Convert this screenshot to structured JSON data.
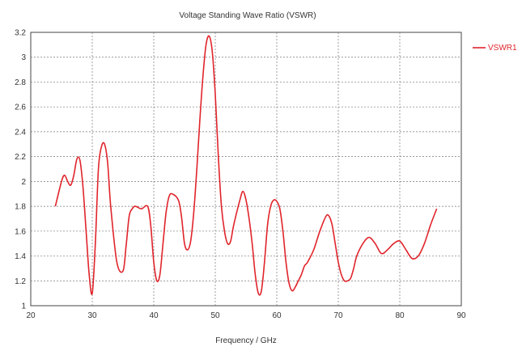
{
  "chart_data": {
    "type": "line",
    "title": "Voltage Standing Wave Ratio (VSWR)",
    "xlabel": "Frequency / GHz",
    "ylabel": "",
    "xlim": [
      20,
      90
    ],
    "ylim": [
      1,
      3.2
    ],
    "xticks": [
      "20",
      "30",
      "40",
      "50",
      "60",
      "70",
      "80",
      "90"
    ],
    "yticks": [
      "1",
      "1.2",
      "1.4",
      "1.6",
      "1.8",
      "2",
      "2.2",
      "2.4",
      "2.6",
      "2.8",
      "3",
      "3.2"
    ],
    "grid": true,
    "legend_position": "right",
    "series": [
      {
        "name": "VSWR1",
        "color": "#e0242b",
        "x": [
          24,
          25,
          25.5,
          26,
          26.5,
          27,
          27.5,
          28,
          28.5,
          29,
          29.5,
          30,
          30.5,
          31,
          31.5,
          32,
          32.5,
          33,
          34,
          35,
          35.5,
          36,
          36.5,
          37,
          38,
          39,
          39.5,
          40,
          40.5,
          41,
          41.5,
          42,
          42.5,
          43,
          44,
          44.5,
          45,
          45.5,
          46,
          46.5,
          47,
          47.5,
          48,
          48.5,
          49,
          49.5,
          50,
          50.5,
          51,
          51.5,
          52,
          52.5,
          53,
          54,
          54.5,
          55,
          55.5,
          56,
          56.5,
          57,
          57.5,
          58,
          58.5,
          59,
          59.5,
          60,
          60.5,
          61,
          61.5,
          62,
          62.5,
          63,
          63.5,
          64,
          64.5,
          65,
          66,
          67,
          68,
          68.5,
          69,
          69.5,
          70,
          70.5,
          71,
          71.5,
          72,
          72.5,
          73,
          74,
          75,
          76,
          77,
          78,
          79,
          80,
          81,
          82,
          83,
          84,
          85,
          86
        ],
        "values": [
          1.8,
          2.0,
          2.05,
          2.0,
          1.97,
          2.05,
          2.18,
          2.17,
          1.95,
          1.6,
          1.25,
          1.1,
          1.5,
          2.1,
          2.28,
          2.3,
          2.15,
          1.8,
          1.35,
          1.28,
          1.48,
          1.72,
          1.78,
          1.8,
          1.78,
          1.8,
          1.65,
          1.35,
          1.2,
          1.25,
          1.5,
          1.75,
          1.88,
          1.9,
          1.85,
          1.72,
          1.5,
          1.45,
          1.52,
          1.75,
          2.1,
          2.5,
          2.85,
          3.1,
          3.17,
          3.05,
          2.7,
          2.2,
          1.8,
          1.6,
          1.5,
          1.52,
          1.65,
          1.85,
          1.92,
          1.85,
          1.7,
          1.5,
          1.25,
          1.1,
          1.12,
          1.35,
          1.65,
          1.8,
          1.85,
          1.84,
          1.78,
          1.6,
          1.35,
          1.18,
          1.12,
          1.15,
          1.2,
          1.25,
          1.32,
          1.35,
          1.45,
          1.6,
          1.72,
          1.72,
          1.65,
          1.5,
          1.35,
          1.25,
          1.2,
          1.2,
          1.22,
          1.3,
          1.4,
          1.5,
          1.55,
          1.5,
          1.42,
          1.45,
          1.5,
          1.52,
          1.45,
          1.38,
          1.4,
          1.5,
          1.65,
          1.78
        ]
      }
    ]
  }
}
